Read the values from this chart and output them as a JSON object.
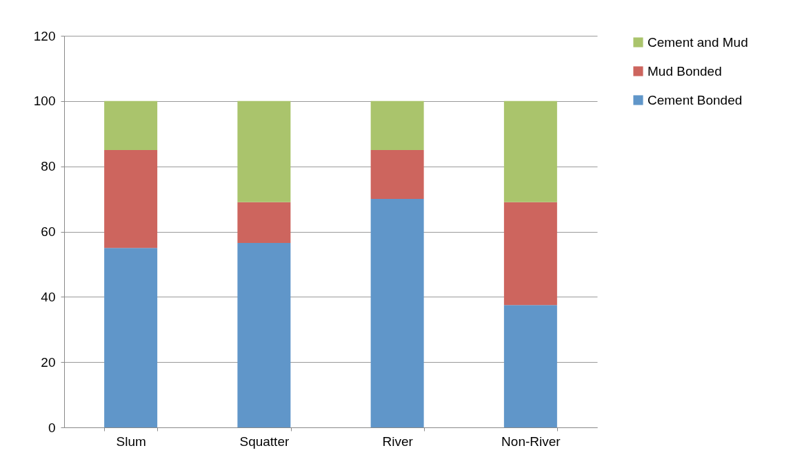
{
  "chart_data": {
    "type": "bar",
    "stacked": true,
    "categories": [
      "Slum",
      "Squatter",
      "River",
      "Non-River"
    ],
    "series": [
      {
        "name": "Cement Bonded",
        "color": "#6096c9",
        "values": [
          55,
          56.5,
          70,
          37.5
        ]
      },
      {
        "name": "Mud Bonded",
        "color": "#cd655e",
        "values": [
          30,
          12.5,
          15,
          31.5
        ]
      },
      {
        "name": "Cement and Mud",
        "color": "#aac46c",
        "values": [
          15,
          31,
          15,
          31
        ]
      }
    ],
    "ylim": [
      0,
      120
    ],
    "yticks": [
      0,
      20,
      40,
      60,
      80,
      100,
      120
    ],
    "grid": "y",
    "legend": "right"
  }
}
